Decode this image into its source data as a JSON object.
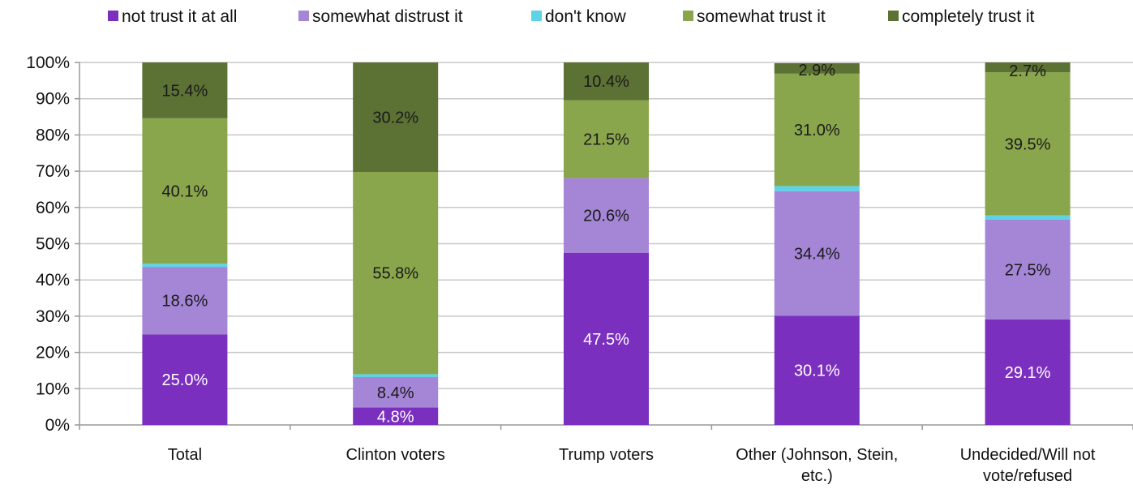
{
  "chart_data": {
    "type": "bar",
    "stacked": true,
    "orientation": "vertical",
    "categories": [
      [
        "Total"
      ],
      [
        "Clinton voters"
      ],
      [
        "Trump voters"
      ],
      [
        "Other (Johnson, Stein,",
        "etc.)"
      ],
      [
        "Undecided/Will not",
        "vote/refused"
      ]
    ],
    "series": [
      {
        "name": "not trust it at all",
        "color": "#7b2fbe",
        "values": [
          25.0,
          4.8,
          47.5,
          30.1,
          29.1
        ],
        "labels": [
          "25.0%",
          "4.8%",
          "47.5%",
          "30.1%",
          "29.1%"
        ],
        "label_color": "#ffffff"
      },
      {
        "name": "somewhat distrust it",
        "color": "#a585d6",
        "values": [
          18.6,
          8.4,
          20.6,
          34.4,
          27.5
        ],
        "labels": [
          "18.6%",
          "8.4%",
          "20.6%",
          "34.4%",
          "27.5%"
        ],
        "label_color": "#1a1a1a"
      },
      {
        "name": "don't know",
        "color": "#5fd3e6",
        "values": [
          0.9,
          0.8,
          0.0,
          1.4,
          1.2
        ],
        "labels": [
          "",
          "",
          "",
          "",
          ""
        ],
        "label_color": "#1a1a1a"
      },
      {
        "name": "somewhat trust it",
        "color": "#8aa64c",
        "values": [
          40.1,
          55.8,
          21.5,
          31.0,
          39.5
        ],
        "labels": [
          "40.1%",
          "55.8%",
          "21.5%",
          "31.0%",
          "39.5%"
        ],
        "label_color": "#1a1a1a"
      },
      {
        "name": "completely trust it",
        "color": "#5c7134",
        "values": [
          15.4,
          30.2,
          10.4,
          2.9,
          2.7
        ],
        "labels": [
          "15.4%",
          "30.2%",
          "10.4%",
          "2.9%",
          "2.7%"
        ],
        "label_color": "#1a1a1a"
      }
    ],
    "y_ticks": [
      "0%",
      "10%",
      "20%",
      "30%",
      "40%",
      "50%",
      "60%",
      "70%",
      "80%",
      "90%",
      "100%"
    ],
    "ylim": [
      0,
      100
    ],
    "grid": true,
    "legend": "top"
  }
}
